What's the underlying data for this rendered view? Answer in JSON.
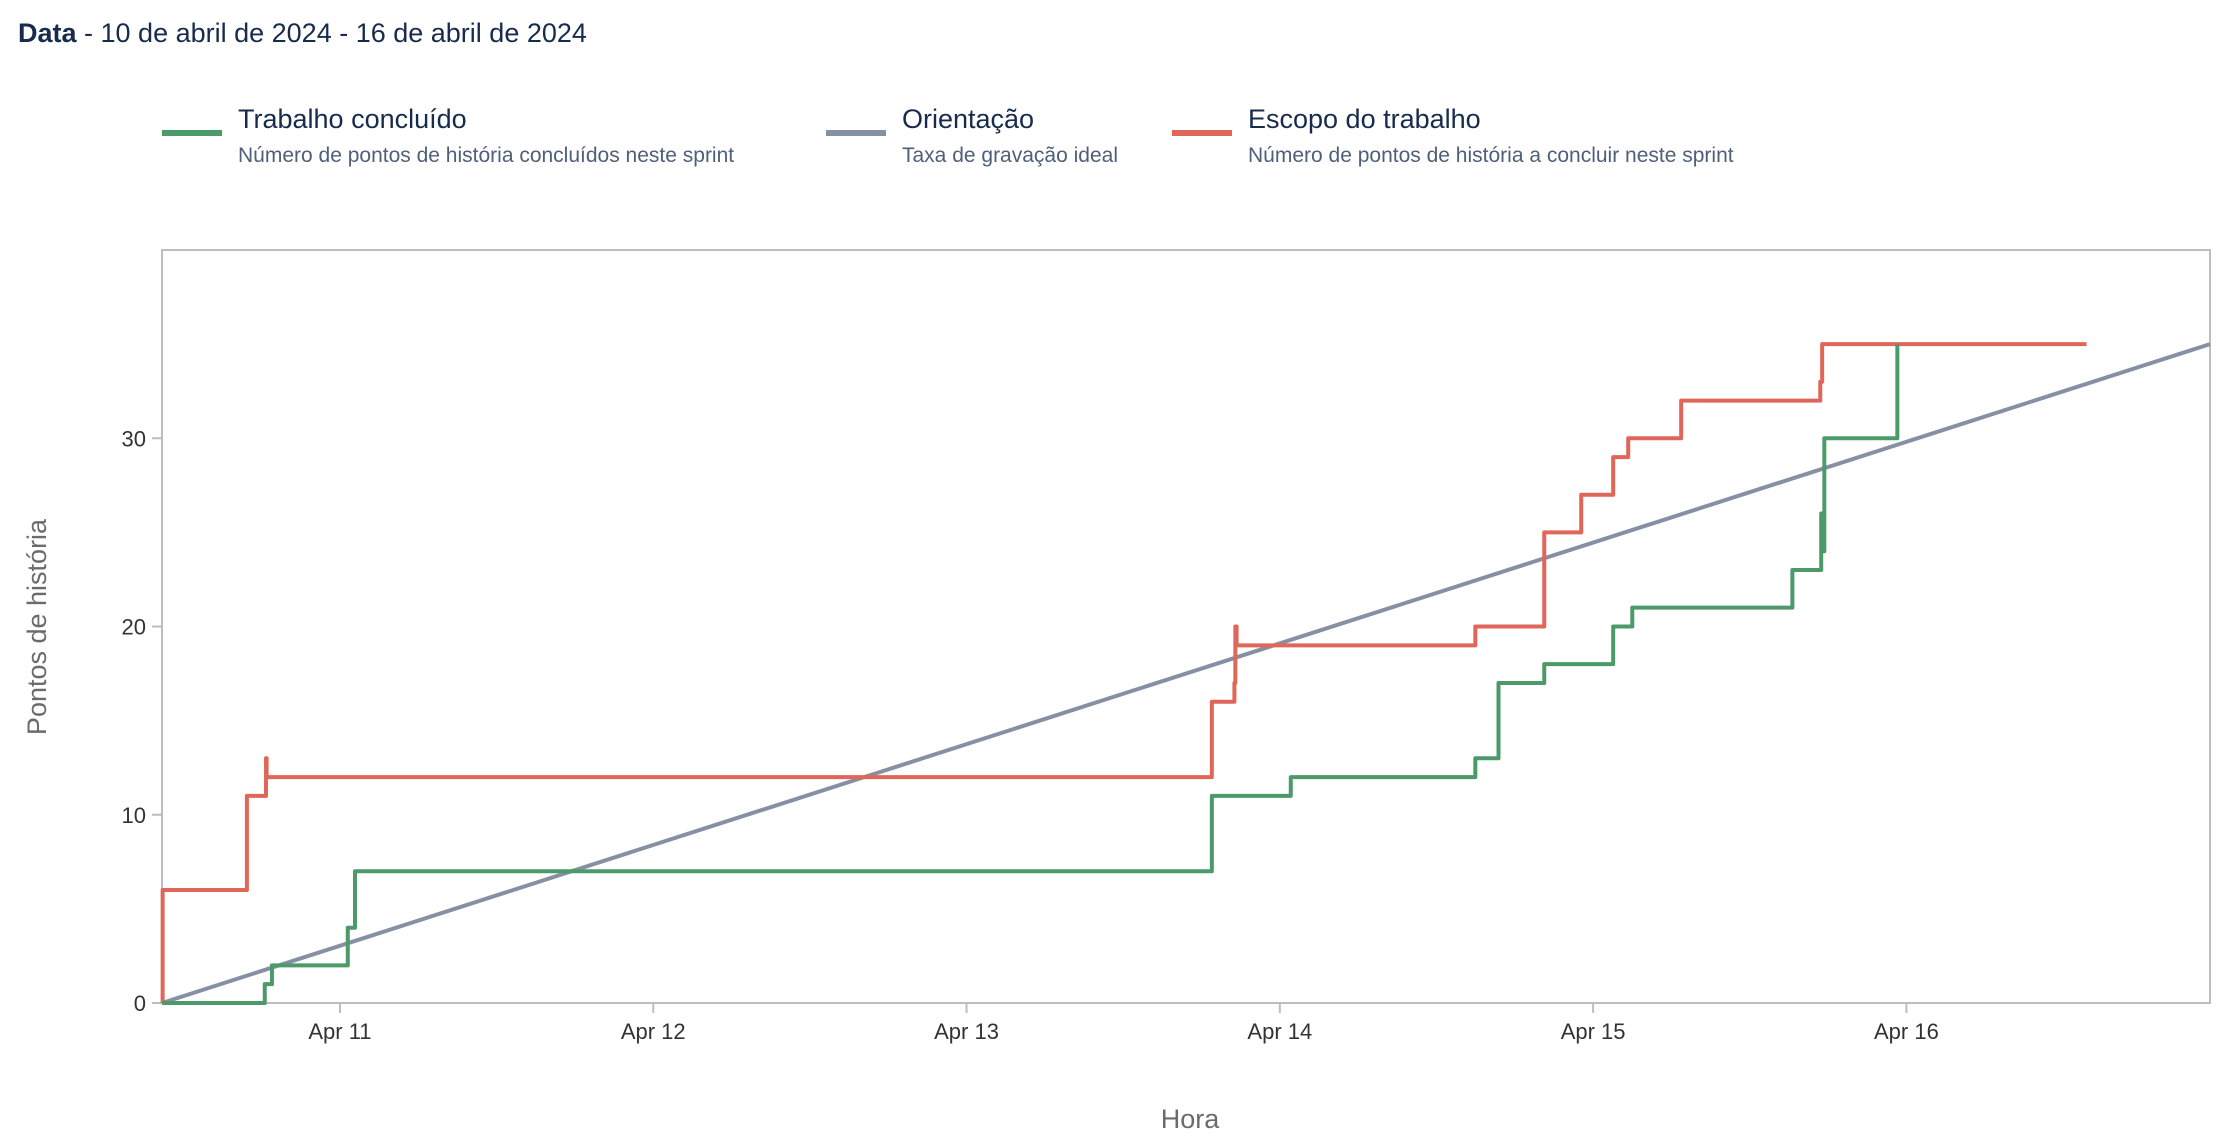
{
  "header": {
    "label": "Data",
    "range": " - 10 de abril de 2024 - 16 de abril de 2024"
  },
  "legend": [
    {
      "label": "Trabalho concluído",
      "description": "Número de pontos de história concluídos neste sprint",
      "color": "#4C9A6A"
    },
    {
      "label": "Orientação",
      "description": "Taxa de gravação ideal",
      "color": "#8590A2"
    },
    {
      "label": "Escopo do trabalho",
      "description": "Número de pontos de história a concluir neste sprint",
      "color": "#E0665A"
    }
  ],
  "chart_data": {
    "type": "line",
    "title": "Data - 10 de abril de 2024 - 16 de abril de 2024",
    "xlabel": "Hora",
    "ylabel": "Pontos de história",
    "x_unit": "day of April 2024 (fractional)",
    "xlim": [
      10.432,
      16.969
    ],
    "ylim": [
      0,
      40
    ],
    "y_ticks": [
      0,
      10,
      20,
      30
    ],
    "x_ticks": [
      {
        "value": 11,
        "label": "Apr 11"
      },
      {
        "value": 12,
        "label": "Apr 12"
      },
      {
        "value": 13,
        "label": "Apr 13"
      },
      {
        "value": 14,
        "label": "Apr 14"
      },
      {
        "value": 15,
        "label": "Apr 15"
      },
      {
        "value": 16,
        "label": "Apr 16"
      }
    ],
    "grid": false,
    "legend_position": "top",
    "series": [
      {
        "name": "Escopo do trabalho",
        "color": "#E0665A",
        "step": true,
        "points": [
          [
            10.432,
            0
          ],
          [
            10.434,
            6
          ],
          [
            10.703,
            11
          ],
          [
            10.764,
            13
          ],
          [
            10.766,
            12
          ],
          [
            13.783,
            16
          ],
          [
            13.855,
            17
          ],
          [
            13.858,
            20
          ],
          [
            13.862,
            19
          ],
          [
            14.624,
            20
          ],
          [
            14.844,
            25
          ],
          [
            14.962,
            27
          ],
          [
            15.064,
            29
          ],
          [
            15.112,
            30
          ],
          [
            15.281,
            32
          ],
          [
            15.725,
            33
          ],
          [
            15.731,
            35
          ],
          [
            16.575,
            35
          ]
        ]
      },
      {
        "name": "Trabalho concluído",
        "color": "#4C9A6A",
        "step": true,
        "points": [
          [
            10.432,
            0
          ],
          [
            10.76,
            1
          ],
          [
            10.783,
            2
          ],
          [
            11.025,
            4
          ],
          [
            11.048,
            7
          ],
          [
            13.783,
            11
          ],
          [
            14.035,
            12
          ],
          [
            14.624,
            13
          ],
          [
            14.698,
            17
          ],
          [
            14.844,
            18
          ],
          [
            15.064,
            20
          ],
          [
            15.125,
            21
          ],
          [
            15.636,
            23
          ],
          [
            15.728,
            26
          ],
          [
            15.735,
            24
          ],
          [
            15.738,
            30
          ],
          [
            15.971,
            35
          ]
        ]
      },
      {
        "name": "Orientação",
        "color": "#8590A2",
        "step": false,
        "points": [
          [
            10.432,
            0
          ],
          [
            16.969,
            35
          ]
        ]
      }
    ]
  }
}
